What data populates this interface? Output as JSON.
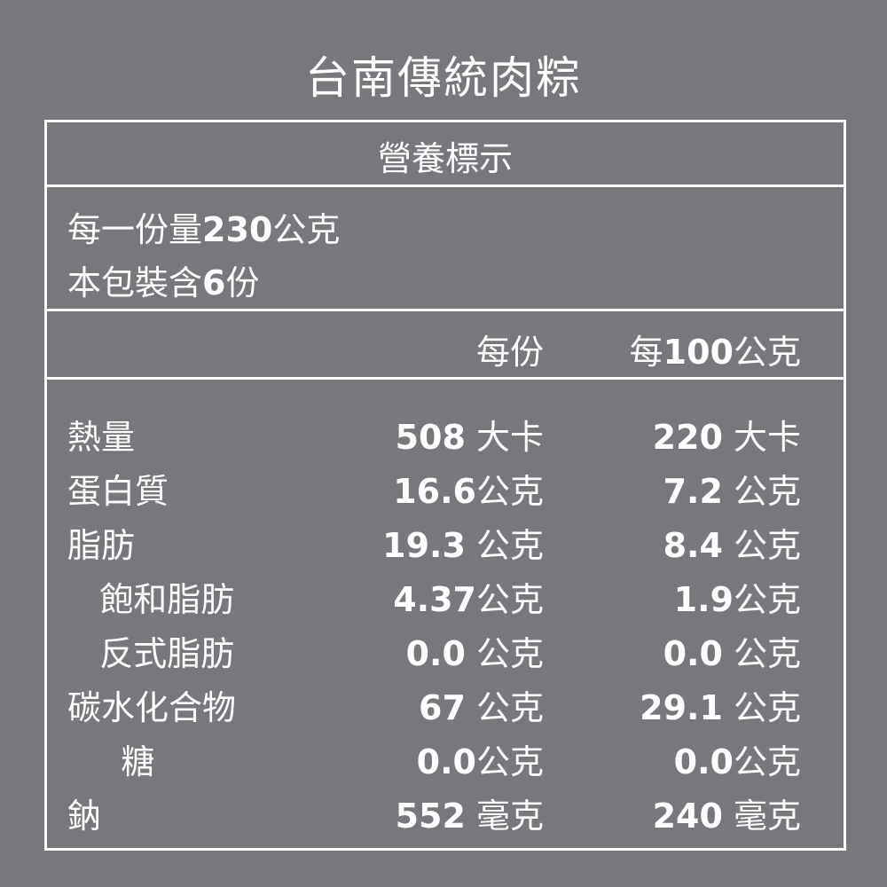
{
  "title": "台南傳統肉粽",
  "header": "營養標示",
  "serving": {
    "size_prefix": "每一份量",
    "size_value": "230",
    "size_unit": "公克",
    "count_prefix": "本包裝含",
    "count_value": "6",
    "count_unit": "份"
  },
  "columns": {
    "per_serving": "每份",
    "per_100_prefix": "每",
    "per_100_value": "100",
    "per_100_unit": "公克"
  },
  "rows": [
    {
      "label": "熱量",
      "v1": "508",
      "u1": " 大卡",
      "v2": "220",
      "u2": " 大卡"
    },
    {
      "label": "蛋白質",
      "v1": "16.6",
      "u1": "公克",
      "v2": "7.2",
      "u2": " 公克"
    },
    {
      "label": "脂肪",
      "v1": "19.3",
      "u1": " 公克",
      "v2": "8.4",
      "u2": " 公克"
    },
    {
      "label": "   飽和脂肪",
      "v1": "4.37",
      "u1": "公克",
      "v2": "1.9",
      "u2": "公克"
    },
    {
      "label": "   反式脂肪",
      "v1": "0.0",
      "u1": " 公克",
      "v2": "0.0",
      "u2": " 公克"
    },
    {
      "label": "碳水化合物",
      "v1": "67",
      "u1": " 公克",
      "v2": "29.1",
      "u2": " 公克"
    },
    {
      "label": "     糖",
      "v1": "0.0",
      "u1": "公克",
      "v2": "0.0",
      "u2": "公克"
    },
    {
      "label": "鈉",
      "v1": "552",
      "u1": " 毫克",
      "v2": "240",
      "u2": " 毫克"
    }
  ]
}
